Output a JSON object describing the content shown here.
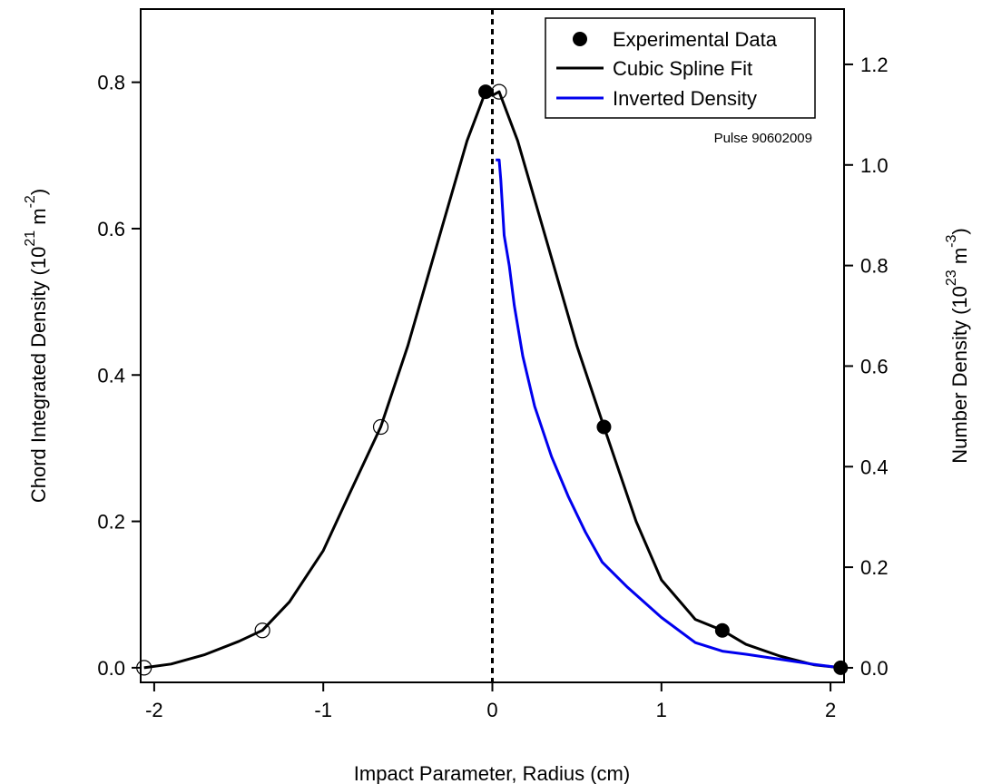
{
  "chart_data": {
    "type": "line",
    "annotation": "Pulse 90602009",
    "xlabel": "Impact Parameter, Radius (cm)",
    "ylabel_left": {
      "text": "Chord Integrated Density (10",
      "exp1": "21",
      "mid": " m",
      "exp2": "-2",
      "end": ")"
    },
    "ylabel_right": {
      "text": "Number Density (10",
      "exp1": "23",
      "mid": " m",
      "exp2": "-3",
      "end": ")"
    },
    "xlim": [
      -2.08,
      2.08
    ],
    "ylim_left": [
      -0.02,
      0.9
    ],
    "ylim_right": [
      -0.029,
      1.31
    ],
    "x_ticks": [
      -2,
      -1,
      0,
      1,
      2
    ],
    "x_tick_labels": [
      "-2",
      "-1",
      "0",
      "1",
      "2"
    ],
    "y_left_ticks": [
      0.0,
      0.2,
      0.4,
      0.6,
      0.8
    ],
    "y_left_tick_labels": [
      "0.0",
      "0.2",
      "0.4",
      "0.6",
      "0.8"
    ],
    "y_right_ticks": [
      0.0,
      0.2,
      0.4,
      0.6,
      0.8,
      1.0,
      1.2
    ],
    "y_right_tick_labels": [
      "0.0",
      "0.2",
      "0.4",
      "0.6",
      "0.8",
      "1.0",
      "1.2"
    ],
    "grid": false,
    "legend_position": "top-right",
    "reference_line_x": 0,
    "legend": [
      {
        "name": "Experimental Data",
        "kind": "marker",
        "color": "#000000"
      },
      {
        "name": "Cubic Spline Fit",
        "kind": "line",
        "color": "#000000"
      },
      {
        "name": "Inverted Density",
        "kind": "line",
        "color": "#0000ee"
      }
    ],
    "series": [
      {
        "name": "Experimental Data",
        "kind": "scatter",
        "axis": "left",
        "x": [
          -0.04,
          0.66,
          1.36,
          2.06
        ],
        "y": [
          0.787,
          0.329,
          0.051,
          0.0
        ]
      },
      {
        "kind": "scatter-open",
        "axis": "left",
        "x": [
          0.04,
          -0.66,
          -1.36,
          -2.06
        ],
        "y": [
          0.787,
          0.329,
          0.051,
          0.0
        ]
      },
      {
        "name": "Cubic Spline Fit",
        "kind": "line",
        "axis": "left",
        "x": [
          -2.06,
          -1.9,
          -1.7,
          -1.5,
          -1.36,
          -1.2,
          -1.0,
          -0.85,
          -0.66,
          -0.5,
          -0.3,
          -0.15,
          -0.04,
          0.0,
          0.04,
          0.15,
          0.3,
          0.5,
          0.66,
          0.85,
          1.0,
          1.2,
          1.36,
          1.5,
          1.7,
          1.9,
          2.06
        ],
        "y": [
          0.0,
          0.005,
          0.018,
          0.036,
          0.051,
          0.09,
          0.16,
          0.235,
          0.329,
          0.44,
          0.6,
          0.72,
          0.787,
          0.782,
          0.787,
          0.72,
          0.6,
          0.44,
          0.329,
          0.2,
          0.12,
          0.066,
          0.051,
          0.032,
          0.016,
          0.004,
          0.0
        ]
      },
      {
        "name": "Inverted Density",
        "kind": "line",
        "axis": "right",
        "x": [
          0.02,
          0.04,
          0.05,
          0.07,
          0.1,
          0.13,
          0.18,
          0.25,
          0.35,
          0.45,
          0.55,
          0.65,
          0.8,
          1.0,
          1.2,
          1.36,
          1.5,
          1.7,
          1.9,
          2.06
        ],
        "y": [
          1.01,
          1.01,
          0.97,
          0.86,
          0.8,
          0.72,
          0.62,
          0.52,
          0.42,
          0.34,
          0.27,
          0.21,
          0.16,
          0.1,
          0.05,
          0.033,
          0.027,
          0.017,
          0.007,
          0.0
        ]
      }
    ]
  }
}
